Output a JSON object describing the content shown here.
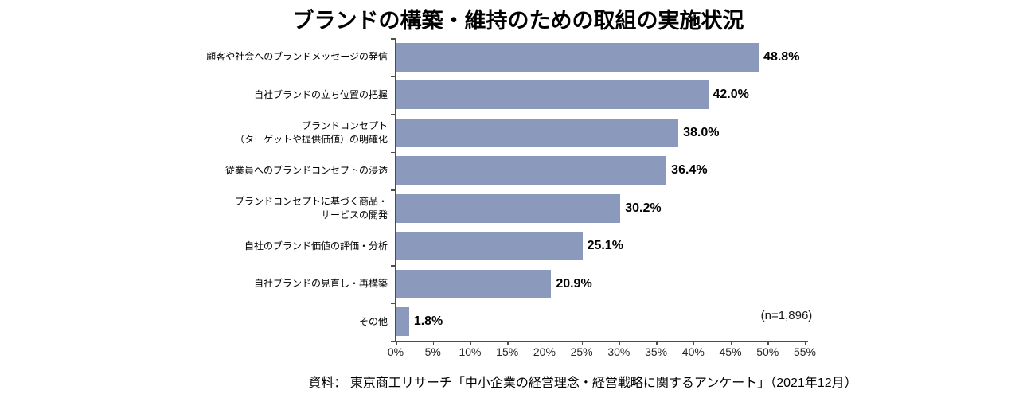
{
  "chart_data": {
    "type": "bar",
    "orientation": "horizontal",
    "title": "ブランドの構築・維持のための取組の実施状況",
    "categories": [
      "顧客や社会へのブランドメッセージの発信",
      "自社ブランドの立ち位置の把握",
      "ブランドコンセプト\n（ターゲットや提供価値）の明確化",
      "従業員へのブランドコンセプトの浸透",
      "ブランドコンセプトに基づく商品・\nサービスの開発",
      "自社のブランド価値の評価・分析",
      "自社ブランドの見直し・再構築",
      "その他"
    ],
    "values": [
      48.8,
      42.0,
      38.0,
      36.4,
      30.2,
      25.1,
      20.9,
      1.8
    ],
    "value_labels": [
      "48.8%",
      "42.0%",
      "38.0%",
      "36.4%",
      "30.2%",
      "25.1%",
      "20.9%",
      "1.8%"
    ],
    "x_ticks": [
      "0%",
      "5%",
      "10%",
      "15%",
      "20%",
      "25%",
      "30%",
      "35%",
      "40%",
      "45%",
      "50%",
      "55%"
    ],
    "xlim": [
      0,
      55
    ],
    "grid": "off",
    "legend": "none",
    "bar_color": "#8A99BC",
    "axis_color": "#4d4d4d",
    "sample_size_label": "(n=1,896)",
    "source": "資料： 東京商工リサーチ「中小企業の経営理念・経営戦略に関するアンケート」（2021年12月）"
  }
}
